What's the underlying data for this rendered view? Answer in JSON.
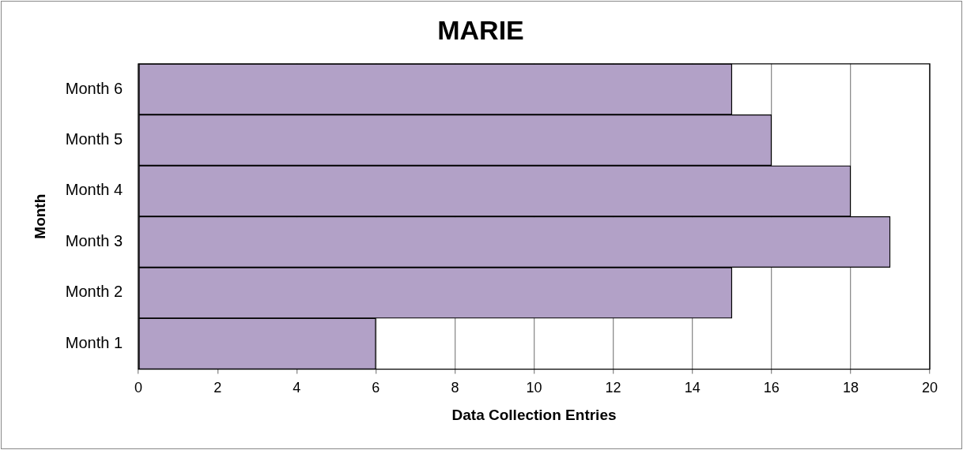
{
  "chart_data": {
    "type": "bar",
    "orientation": "horizontal",
    "title": "MARIE",
    "xlabel": "Data Collection Entries",
    "ylabel": "Month",
    "categories": [
      "Month 6",
      "Month 5",
      "Month 4",
      "Month 3",
      "Month 2",
      "Month 1"
    ],
    "values": [
      15,
      16,
      18,
      19,
      15,
      6
    ],
    "color": "#b2a1c7",
    "xlim": [
      0,
      20
    ],
    "xticks": [
      0,
      2,
      4,
      6,
      8,
      10,
      12,
      14,
      16,
      18,
      20
    ],
    "grid": "x",
    "legend": false
  }
}
